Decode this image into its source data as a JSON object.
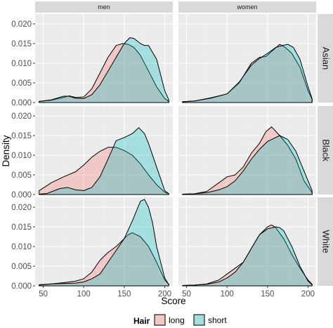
{
  "chart_data": {
    "type": "area",
    "xlabel": "Score",
    "ylabel": "Density",
    "xlim": [
      40,
      210
    ],
    "ylim": [
      0,
      0.0225
    ],
    "x_ticks": [
      50,
      100,
      150,
      200
    ],
    "y_ticks": [
      0.0,
      0.005,
      0.01,
      0.015,
      0.02
    ],
    "y_tick_labels": [
      "0.000",
      "0.005",
      "0.010",
      "0.015",
      "0.020"
    ],
    "grid": true,
    "legend_position": "bottom",
    "legend_title": "Hair",
    "columns": [
      "men",
      "women"
    ],
    "rows": [
      "Asian",
      "Black",
      "White"
    ],
    "series_styles": [
      {
        "name": "long",
        "color": "#F8766D"
      },
      {
        "name": "short",
        "color": "#00BFC4"
      }
    ],
    "panels": [
      {
        "col": "men",
        "row": "Asian",
        "series": [
          {
            "name": "long",
            "x": [
              45,
              60,
              75,
              82,
              90,
              100,
              110,
              120,
              130,
              140,
              148,
              155,
              162,
              170,
              180,
              190,
              200,
              205
            ],
            "y": [
              0.0003,
              0.0006,
              0.0013,
              0.0017,
              0.0013,
              0.0014,
              0.0035,
              0.0075,
              0.0115,
              0.0145,
              0.015,
              0.0148,
              0.014,
              0.012,
              0.008,
              0.004,
              0.001,
              0.0003
            ]
          },
          {
            "name": "short",
            "x": [
              45,
              60,
              75,
              82,
              90,
              100,
              110,
              120,
              130,
              140,
              150,
              157,
              162,
              170,
              175,
              180,
              190,
              200,
              205
            ],
            "y": [
              0.0003,
              0.0007,
              0.0016,
              0.0016,
              0.0011,
              0.001,
              0.002,
              0.0045,
              0.008,
              0.0115,
              0.015,
              0.0165,
              0.0163,
              0.015,
              0.0145,
              0.0145,
              0.011,
              0.003,
              0.0007
            ]
          }
        ]
      },
      {
        "col": "women",
        "row": "Asian",
        "series": [
          {
            "name": "long",
            "x": [
              45,
              60,
              80,
              100,
              115,
              130,
              140,
              148,
              155,
              165,
              172,
              180,
              190,
              200,
              205
            ],
            "y": [
              0.0002,
              0.0004,
              0.0011,
              0.0022,
              0.005,
              0.01,
              0.0115,
              0.0117,
              0.013,
              0.0148,
              0.014,
              0.0125,
              0.009,
              0.003,
              0.0008
            ]
          },
          {
            "name": "short",
            "x": [
              45,
              60,
              80,
              100,
              115,
              130,
              140,
              150,
              160,
              168,
              175,
              182,
              190,
              200,
              205
            ],
            "y": [
              0.0002,
              0.0004,
              0.0012,
              0.0022,
              0.0052,
              0.0095,
              0.0112,
              0.0125,
              0.014,
              0.0145,
              0.0148,
              0.014,
              0.011,
              0.004,
              0.001
            ]
          }
        ]
      },
      {
        "col": "men",
        "row": "Black",
        "series": [
          {
            "name": "long",
            "x": [
              45,
              60,
              75,
              90,
              100,
              110,
              120,
              130,
              140,
              150,
              160,
              170,
              180,
              190,
              200,
              205
            ],
            "y": [
              0.001,
              0.003,
              0.0045,
              0.0058,
              0.0075,
              0.0095,
              0.011,
              0.012,
              0.012,
              0.0112,
              0.01,
              0.0078,
              0.005,
              0.0025,
              0.0006,
              0.0002
            ]
          },
          {
            "name": "short",
            "x": [
              45,
              55,
              70,
              80,
              90,
              100,
              110,
              120,
              130,
              140,
              150,
              160,
              168,
              175,
              180,
              190,
              200,
              205
            ],
            "y": [
              0.0001,
              0.0003,
              0.0015,
              0.0018,
              0.0012,
              0.001,
              0.0018,
              0.0045,
              0.009,
              0.0137,
              0.0145,
              0.0155,
              0.017,
              0.0155,
              0.013,
              0.007,
              0.001,
              0.0002
            ]
          }
        ]
      },
      {
        "col": "women",
        "row": "Black",
        "series": [
          {
            "name": "long",
            "x": [
              45,
              60,
              75,
              90,
              100,
              110,
              120,
              130,
              140,
              148,
              155,
              165,
              175,
              185,
              195,
              205
            ],
            "y": [
              0.0001,
              0.0002,
              0.0008,
              0.003,
              0.0045,
              0.005,
              0.007,
              0.0105,
              0.013,
              0.016,
              0.0172,
              0.015,
              0.0125,
              0.009,
              0.0035,
              0.0005
            ]
          },
          {
            "name": "short",
            "x": [
              45,
              60,
              75,
              90,
              100,
              110,
              120,
              130,
              140,
              150,
              160,
              165,
              175,
              185,
              195,
              205
            ],
            "y": [
              0.0001,
              0.0002,
              0.0005,
              0.0012,
              0.002,
              0.0035,
              0.006,
              0.009,
              0.0115,
              0.0135,
              0.0145,
              0.015,
              0.014,
              0.011,
              0.006,
              0.001
            ]
          }
        ]
      },
      {
        "col": "men",
        "row": "White",
        "series": [
          {
            "name": "long",
            "x": [
              45,
              60,
              75,
              90,
              100,
              110,
              120,
              130,
              140,
              150,
              155,
              160,
              170,
              180,
              190,
              200,
              205
            ],
            "y": [
              0.0002,
              0.0005,
              0.0008,
              0.0012,
              0.0018,
              0.0035,
              0.0065,
              0.0085,
              0.01,
              0.012,
              0.013,
              0.0135,
              0.0125,
              0.01,
              0.006,
              0.0015,
              0.0004
            ]
          },
          {
            "name": "short",
            "x": [
              45,
              60,
              75,
              90,
              100,
              110,
              120,
              130,
              140,
              150,
              160,
              170,
              175,
              180,
              185,
              190,
              200,
              205
            ],
            "y": [
              0.0003,
              0.0005,
              0.0006,
              0.0007,
              0.001,
              0.0018,
              0.003,
              0.006,
              0.009,
              0.012,
              0.0165,
              0.0215,
              0.022,
              0.02,
              0.016,
              0.01,
              0.002,
              0.0003
            ]
          }
        ]
      },
      {
        "col": "women",
        "row": "White",
        "series": [
          {
            "name": "long",
            "x": [
              45,
              60,
              75,
              90,
              100,
              110,
              120,
              130,
              140,
              150,
              155,
              160,
              170,
              180,
              190,
              200,
              205
            ],
            "y": [
              0.0001,
              0.0002,
              0.0005,
              0.0015,
              0.003,
              0.0045,
              0.006,
              0.0095,
              0.013,
              0.015,
              0.0155,
              0.0148,
              0.012,
              0.008,
              0.0045,
              0.0015,
              0.0004
            ]
          },
          {
            "name": "short",
            "x": [
              45,
              60,
              75,
              90,
              100,
              110,
              120,
              130,
              140,
              150,
              160,
              165,
              170,
              180,
              190,
              200,
              205
            ],
            "y": [
              0.0001,
              0.0002,
              0.0004,
              0.001,
              0.002,
              0.0035,
              0.006,
              0.0095,
              0.013,
              0.0145,
              0.015,
              0.0148,
              0.014,
              0.01,
              0.005,
              0.0012,
              0.0003
            ]
          }
        ]
      }
    ]
  }
}
